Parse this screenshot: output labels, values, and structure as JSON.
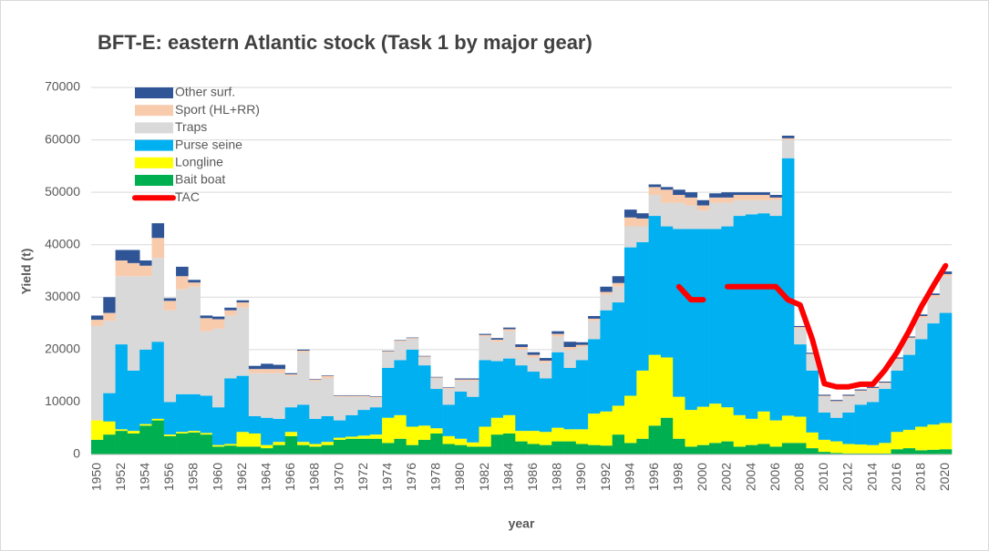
{
  "chart_data": {
    "type": "bar",
    "stacked": true,
    "title": "BFT-E: eastern Atlantic stock (Task 1 by major gear)",
    "y_label": "Yield (t)",
    "x_label": "year",
    "legend": "top-left",
    "grid": true,
    "ylim": [
      0,
      70000
    ],
    "yticks": [
      0,
      10000,
      20000,
      30000,
      40000,
      50000,
      60000,
      70000
    ],
    "categories": [
      "1950",
      null,
      "1952",
      null,
      "1954",
      null,
      "1956",
      null,
      "1958",
      null,
      "1960",
      null,
      "1962",
      null,
      "1964",
      null,
      "1966",
      null,
      "1968",
      null,
      "1970",
      null,
      "1972",
      null,
      "1974",
      null,
      "1976",
      null,
      "1978",
      null,
      "1980",
      null,
      "1982",
      null,
      "1984",
      null,
      "1986",
      null,
      "1988",
      null,
      "1990",
      null,
      "1992",
      null,
      "1994",
      null,
      "1996",
      null,
      "1998",
      null,
      "2000",
      null,
      "2002",
      null,
      "2004",
      null,
      "2006",
      null,
      "2008",
      null,
      "2010",
      null,
      "2012",
      null,
      "2014",
      null,
      "2016",
      null,
      "2018",
      null,
      "2020"
    ],
    "series": [
      {
        "name": "Other surf.",
        "color": "#2f5597",
        "values": [
          800,
          3000,
          2000,
          2500,
          1000,
          2800,
          500,
          1800,
          500,
          500,
          500,
          500,
          400,
          600,
          1000,
          800,
          200,
          200,
          100,
          100,
          100,
          100,
          100,
          100,
          100,
          100,
          100,
          100,
          100,
          100,
          200,
          200,
          200,
          300,
          300,
          500,
          500,
          500,
          500,
          1000,
          500,
          500,
          1000,
          1300,
          1500,
          1000,
          500,
          500,
          1000,
          1000,
          1000,
          800,
          1000,
          500,
          500,
          500,
          500,
          500,
          200,
          200,
          200,
          200,
          200,
          200,
          200,
          200,
          200,
          200,
          300,
          300,
          500
        ]
      },
      {
        "name": "Sport (HL+RR)",
        "color": "#f8cbad",
        "values": [
          1200,
          1500,
          3000,
          2500,
          2000,
          3800,
          1800,
          2500,
          800,
          2500,
          1800,
          1000,
          1000,
          800,
          800,
          800,
          300,
          300,
          300,
          500,
          200,
          200,
          200,
          200,
          200,
          200,
          200,
          200,
          200,
          200,
          300,
          300,
          300,
          400,
          400,
          500,
          500,
          400,
          500,
          500,
          400,
          400,
          500,
          700,
          1700,
          1500,
          1500,
          2500,
          1500,
          1500,
          1000,
          1000,
          1000,
          1000,
          1000,
          1000,
          500,
          300,
          300,
          200,
          200,
          200,
          200,
          200,
          200,
          200,
          300,
          300,
          400,
          400,
          400
        ]
      },
      {
        "name": "Traps",
        "color": "#d9d9d9",
        "values": [
          18000,
          13800,
          13000,
          18000,
          14000,
          16000,
          17500,
          20000,
          20500,
          12300,
          15000,
          12000,
          13000,
          8200,
          8500,
          8700,
          6000,
          10000,
          7200,
          7200,
          4500,
          3500,
          2500,
          1800,
          3000,
          3500,
          2000,
          1500,
          2000,
          3000,
          2000,
          3000,
          4500,
          3700,
          5200,
          3000,
          2700,
          3000,
          3000,
          3500,
          2500,
          3500,
          3000,
          3000,
          4000,
          3000,
          4000,
          4500,
          5000,
          4500,
          3500,
          5000,
          4500,
          3000,
          2700,
          2500,
          3000,
          3500,
          3000,
          3000,
          3000,
          3000,
          3000,
          2500,
          2500,
          1000,
          2000,
          3000,
          4000,
          5000,
          7000
        ]
      },
      {
        "name": "Purse seine",
        "color": "#00b0f0",
        "values": [
          0,
          5400,
          16200,
          11500,
          14200,
          14700,
          6200,
          7200,
          7000,
          7100,
          7200,
          12500,
          10700,
          3300,
          5200,
          4400,
          4700,
          7100,
          4800,
          4900,
          3300,
          4100,
          4900,
          5200,
          9500,
          10500,
          14700,
          11500,
          7500,
          6000,
          9000,
          8700,
          12700,
          10800,
          10800,
          12500,
          11300,
          10200,
          14400,
          11700,
          13200,
          14200,
          19300,
          19700,
          28300,
          24500,
          26500,
          25000,
          32000,
          34500,
          33900,
          33300,
          34500,
          38000,
          39000,
          37800,
          39000,
          49100,
          13800,
          11800,
          5200,
          4500,
          6000,
          7600,
          8200,
          10300,
          11700,
          14300,
          16700,
          19300,
          21000
        ]
      },
      {
        "name": "Longline",
        "color": "#ffff00",
        "values": [
          3700,
          2500,
          300,
          500,
          300,
          300,
          300,
          300,
          300,
          300,
          300,
          300,
          2800,
          2500,
          600,
          600,
          800,
          600,
          500,
          600,
          400,
          400,
          600,
          800,
          4800,
          4500,
          3500,
          2700,
          1000,
          1500,
          1200,
          800,
          3800,
          3200,
          3500,
          2000,
          2500,
          2500,
          2600,
          2300,
          2800,
          6000,
          6500,
          5500,
          9000,
          13000,
          13500,
          11500,
          8000,
          7000,
          7300,
          7500,
          6500,
          6000,
          5000,
          6200,
          5000,
          5200,
          5000,
          3000,
          2300,
          2200,
          1800,
          1700,
          1600,
          2000,
          3300,
          3500,
          4500,
          4800,
          5000
        ]
      },
      {
        "name": "Bait boat",
        "color": "#00b050",
        "values": [
          2800,
          3800,
          4500,
          4000,
          5500,
          6500,
          3500,
          4000,
          4200,
          3800,
          1500,
          1700,
          1500,
          1500,
          1200,
          1800,
          3500,
          1800,
          1500,
          1800,
          2800,
          3000,
          3000,
          3000,
          2200,
          3000,
          1800,
          2800,
          4000,
          2000,
          1800,
          1500,
          1500,
          3800,
          4000,
          2500,
          2000,
          1800,
          2500,
          2500,
          2000,
          1800,
          1700,
          3800,
          2200,
          3000,
          5500,
          7000,
          3000,
          1500,
          1800,
          2200,
          2500,
          1500,
          1800,
          2000,
          1500,
          2200,
          2200,
          1200,
          500,
          300,
          200,
          200,
          200,
          200,
          1000,
          1200,
          800,
          900,
          1000
        ]
      },
      {
        "name": "TAC",
        "type": "line",
        "color": "#ff0000",
        "values": [
          null,
          null,
          null,
          null,
          null,
          null,
          null,
          null,
          null,
          null,
          null,
          null,
          null,
          null,
          null,
          null,
          null,
          null,
          null,
          null,
          null,
          null,
          null,
          null,
          null,
          null,
          null,
          null,
          null,
          null,
          null,
          null,
          null,
          null,
          null,
          null,
          null,
          null,
          null,
          null,
          null,
          null,
          null,
          null,
          null,
          null,
          null,
          null,
          32000,
          29500,
          29500,
          null,
          32000,
          32000,
          32000,
          32000,
          32000,
          29500,
          28500,
          22000,
          13500,
          12900,
          12900,
          13400,
          13400,
          16100,
          19500,
          23600,
          28200,
          32200,
          36000
        ]
      }
    ]
  }
}
